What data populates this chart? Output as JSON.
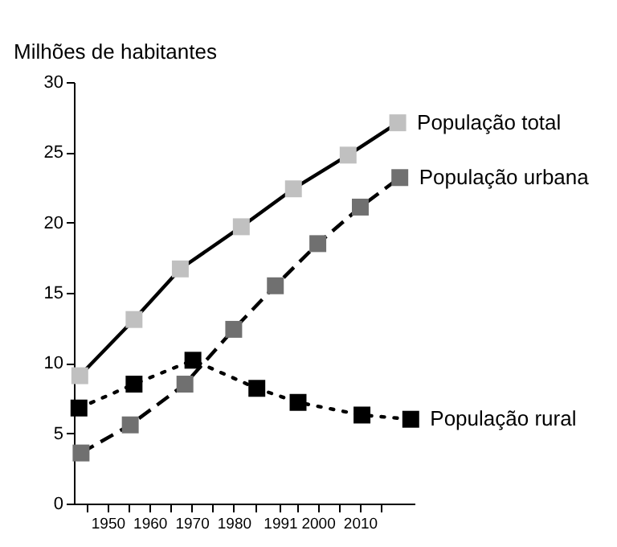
{
  "chart_data": {
    "type": "line",
    "ylabel": "Milhões de habitantes",
    "xlim": [
      1942,
      2023
    ],
    "xticks": [
      {
        "value": 1945,
        "label": null
      },
      1950,
      {
        "value": 1955,
        "label": null
      },
      1960,
      {
        "value": 1965,
        "label": null
      },
      1970,
      {
        "value": 1975,
        "label": null
      },
      1980,
      {
        "value": 1985,
        "label": null
      },
      1991,
      {
        "value": 1995,
        "label": null
      },
      2000,
      {
        "value": 2005,
        "label": null
      },
      2010,
      {
        "value": 2015,
        "label": null
      }
    ],
    "ylim": [
      0,
      30
    ],
    "yticks": [
      0,
      5,
      10,
      15,
      20,
      25,
      30
    ],
    "grid": false,
    "legend": false,
    "marker": "square",
    "series": [
      {
        "name": "População total",
        "color": "#c0c0c0",
        "line_style": "solid",
        "x": [
          1943.4,
          1956.3,
          1967.3,
          1981.8,
          1994.2,
          2007.2,
          2019.0
        ],
        "values": [
          9.1,
          13.1,
          16.7,
          19.7,
          22.4,
          24.8,
          27.1
        ]
      },
      {
        "name": "População urbana",
        "color": "#707070",
        "line_style": "dashed",
        "x": [
          1943.7,
          1955.4,
          1968.4,
          1980.0,
          1989.9,
          2000.0,
          2010.1,
          2019.5
        ],
        "values": [
          3.6,
          5.6,
          8.5,
          12.4,
          15.5,
          18.5,
          21.1,
          23.2
        ]
      },
      {
        "name": "População rural",
        "color": "#000000",
        "line_style": "dotted",
        "x": [
          1943.2,
          1956.3,
          1970.3,
          1985.5,
          1995.3,
          2010.5,
          2022.1
        ],
        "values": [
          6.8,
          8.5,
          10.2,
          8.2,
          7.2,
          6.3,
          6.0
        ]
      }
    ]
  }
}
